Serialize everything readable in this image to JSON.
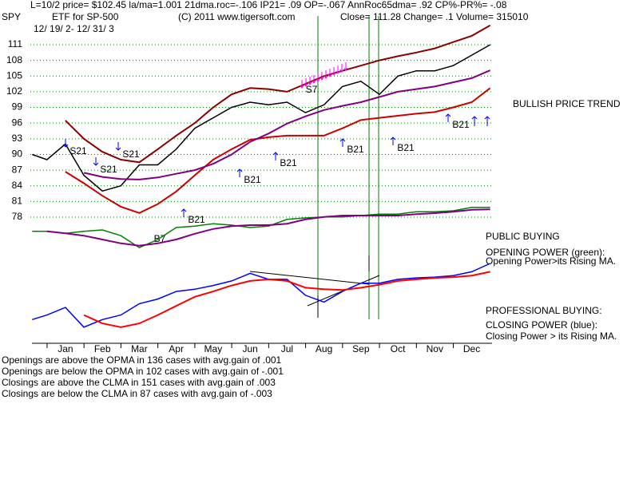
{
  "header": {
    "info": "L=10/2  price= $102.45  la/ma=1.001 21dma.roc=-.106 IP21= .09 OP=-.067 AnnRoc65dma= .92 CP%-PR%= -.08",
    "symbol": "SPY",
    "description": "ETF for SP-500",
    "copyright": "(C) 2011 www.tigersoft.com",
    "quote": "Close=  111.28  Change= .1 Volume= 315010",
    "period": "12/ 19/ 2-  12/ 31/ 3"
  },
  "chart_data": [
    {
      "type": "line",
      "grid": true,
      "x": [
        -0.4,
        0,
        0.5,
        1,
        1.5,
        2,
        2.5,
        3,
        3.5,
        4,
        4.5,
        5,
        5.5,
        6,
        6.5,
        7,
        7.5,
        8,
        8.5,
        9,
        9.5,
        10,
        10.5,
        11,
        11.5,
        12
      ],
      "xlim": [
        -0.45,
        12.05
      ],
      "ylim": [
        78,
        116.5
      ],
      "yticks": [
        111,
        108,
        105,
        102,
        99,
        96,
        93,
        90,
        87,
        84,
        81,
        78
      ],
      "series": [
        {
          "color": "#000000",
          "values": [
            90,
            89,
            92,
            86,
            83,
            84,
            88,
            88,
            91,
            95,
            97,
            99,
            100,
            99.5,
            100,
            98,
            99.5,
            103,
            104,
            101.5,
            105,
            106,
            106,
            107,
            109,
            111
          ]
        },
        {
          "color": "#8b0000",
          "values": [
            null,
            null,
            96.5,
            93,
            90.5,
            89,
            88.5,
            91,
            93.6,
            96,
            99,
            101.5,
            102.7,
            102.5,
            102,
            103.5,
            105,
            106,
            107,
            108,
            108.8,
            109.5,
            110.3,
            111.5,
            112.7,
            114.7
          ]
        },
        {
          "color": "#cc0000",
          "values": [
            null,
            null,
            86.7,
            84.5,
            82.1,
            80,
            78.8,
            80.5,
            82.9,
            86,
            89,
            91,
            92.8,
            93.3,
            93.6,
            93.6,
            93.6,
            95,
            96.6,
            97,
            97.4,
            97.8,
            98.1,
            99,
            100,
            102.7
          ]
        },
        {
          "color": "#800080",
          "values": [
            null,
            null,
            null,
            86.5,
            85.7,
            85.3,
            85.2,
            85.6,
            86.3,
            87,
            88.2,
            90,
            92.4,
            94,
            95.9,
            97.3,
            98.5,
            99.3,
            100,
            101,
            102,
            102.5,
            103,
            103.8,
            104.6,
            106.1
          ]
        }
      ],
      "annotations": [
        "S21",
        "S21",
        "S21",
        "B21",
        "B21",
        "B21",
        "B21",
        "B21",
        "B21",
        "S7",
        "B7"
      ]
    },
    {
      "type": "line",
      "x": [
        -0.4,
        0,
        0.5,
        1,
        1.5,
        2,
        2.5,
        3,
        3.5,
        4,
        4.5,
        5,
        5.5,
        6,
        6.5,
        7,
        7.5,
        8,
        8.5,
        9,
        9.5,
        10,
        10.5,
        11,
        11.5,
        12
      ],
      "xlim": [
        -0.45,
        12.05
      ],
      "ylim": [
        0,
        100
      ],
      "series": [
        {
          "color": "#008000",
          "values": [
            42,
            42,
            38,
            42,
            45,
            33,
            8,
            25,
            50,
            53,
            58,
            55,
            50,
            53,
            67,
            70,
            72,
            72,
            75,
            78,
            78,
            83,
            83,
            85,
            92,
            92
          ]
        },
        {
          "color": "#800080",
          "values": [
            null,
            42,
            38,
            33,
            25,
            17,
            12,
            17,
            25,
            37,
            47,
            53,
            55,
            55,
            58,
            67,
            72,
            75,
            75,
            75,
            75,
            78,
            80,
            83,
            87,
            88
          ]
        }
      ]
    },
    {
      "type": "line",
      "x": [
        -0.4,
        0,
        0.5,
        1,
        1.5,
        2,
        2.5,
        3,
        3.5,
        4,
        4.5,
        5,
        5.5,
        6,
        6.5,
        7,
        7.5,
        8,
        8.5,
        9,
        9.5,
        10,
        10.5,
        11,
        11.5,
        12
      ],
      "xlim": [
        -0.45,
        12.05
      ],
      "ylim": [
        0,
        100
      ],
      "xticks": [
        {
          "value": 0.5,
          "label": "Jan"
        },
        {
          "value": 1.5,
          "label": "Feb"
        },
        {
          "value": 2.5,
          "label": "Mar"
        },
        {
          "value": 3.5,
          "label": "Apr"
        },
        {
          "value": 4.5,
          "label": "May"
        },
        {
          "value": 5.5,
          "label": "Jun"
        },
        {
          "value": 6.5,
          "label": "Jul"
        },
        {
          "value": 7.5,
          "label": "Aug"
        },
        {
          "value": 8.5,
          "label": "Sep"
        },
        {
          "value": 9.5,
          "label": "Oct"
        },
        {
          "value": 10.5,
          "label": "Nov"
        },
        {
          "value": 11.5,
          "label": "Dec"
        }
      ],
      "series": [
        {
          "color": "#0000ff",
          "values": [
            26,
            32,
            42,
            16,
            26,
            32,
            47,
            53,
            63,
            66,
            71,
            77,
            87,
            79,
            79,
            58,
            49,
            63,
            74,
            74,
            79,
            81,
            82,
            84,
            89,
            100
          ]
        },
        {
          "color": "#ff0000",
          "values": [
            null,
            null,
            null,
            32,
            21,
            16,
            21,
            32,
            44,
            56,
            63,
            71,
            77,
            79,
            77,
            68,
            66,
            65,
            68,
            72,
            77,
            79,
            81,
            82,
            84,
            89
          ]
        }
      ]
    }
  ],
  "side_notes": [
    "BULLISH PRICE TREND",
    "PUBLIC BUYING",
    "OPENING POWER (green):",
    "Opening Power>its Rising MA.",
    "PROFESSIONAL BUYING:",
    "CLOSING POWER (blue):",
    "Closing Power > its Rising MA."
  ],
  "stats": [
    "Openings are above the OPMA in  136 cases with avg.gain of  .001",
    "Openings are below the OPMA in  102 cases with avg.gain of -.001",
    "Closings are above the CLMA in  151 cases with avg.gain of  .003",
    "Closings are below the CLMA in  87 cases with avg.gain of -.003"
  ]
}
